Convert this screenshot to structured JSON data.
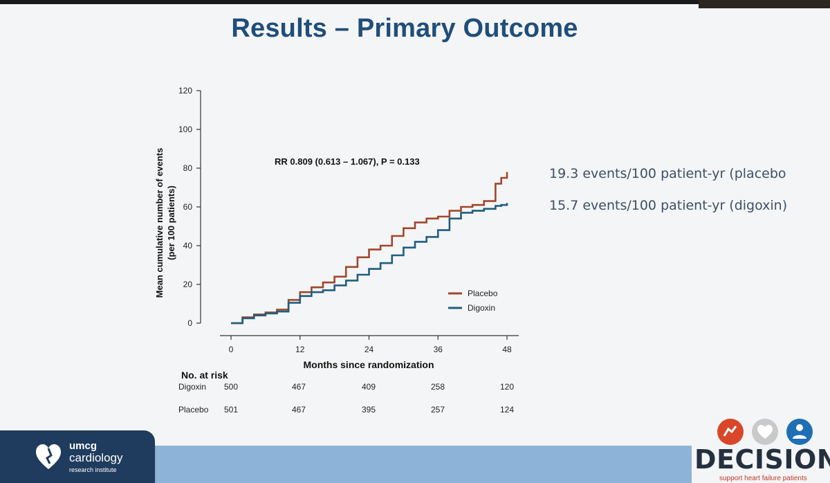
{
  "slide": {
    "title": "Results – Primary Outcome",
    "annotations": [
      "19.3 events/100 patient-yr (placebo",
      "15.7 events/100 patient-yr (digoxin)"
    ]
  },
  "chart_data": {
    "type": "line",
    "title": "",
    "xlabel": "Months since randomization",
    "ylabel": "Mean cumulative number of events (per 100 patients)",
    "ylabel_lines": [
      "Mean cumulative number of events",
      "(per 100 patients)"
    ],
    "xlim": [
      0,
      48
    ],
    "ylim": [
      0,
      120
    ],
    "xticks": [
      0,
      12,
      24,
      36,
      48
    ],
    "yticks": [
      0,
      20,
      40,
      60,
      80,
      100,
      120
    ],
    "grid": false,
    "legend_position": "bottom-right",
    "annotation": "RR 0.809 (0.613 – 1.067), P = 0.133",
    "series": [
      {
        "name": "Placebo",
        "color": "#a0472a",
        "x": [
          0,
          2,
          4,
          6,
          8,
          10,
          12,
          14,
          16,
          18,
          20,
          22,
          24,
          26,
          28,
          30,
          32,
          34,
          36,
          38,
          40,
          42,
          44,
          46,
          47,
          48
        ],
        "y": [
          0,
          3,
          4.5,
          5.5,
          7,
          12,
          16,
          18.5,
          21,
          24,
          29,
          34,
          38,
          40,
          45,
          49,
          52,
          54,
          55,
          58,
          60,
          61,
          63,
          72,
          75,
          78
        ]
      },
      {
        "name": "Digoxin",
        "color": "#1f5d7e",
        "x": [
          0,
          2,
          4,
          6,
          8,
          10,
          12,
          14,
          16,
          18,
          20,
          22,
          24,
          26,
          28,
          30,
          32,
          34,
          36,
          38,
          40,
          42,
          44,
          46,
          47,
          48
        ],
        "y": [
          0,
          2.5,
          4,
          5,
          6,
          10.5,
          14,
          16,
          17,
          19.5,
          22,
          25,
          28,
          31,
          35,
          39,
          42,
          44.5,
          48,
          54,
          57,
          58,
          59,
          60.5,
          61,
          62
        ]
      }
    ],
    "risk_table": {
      "title": "No. at risk",
      "rows": [
        {
          "label": "Digoxin",
          "values": [
            500,
            467,
            409,
            258,
            120
          ]
        },
        {
          "label": "Placebo",
          "values": [
            501,
            467,
            395,
            257,
            124
          ]
        }
      ]
    }
  },
  "footer": {
    "umcg": {
      "line1": "umcg",
      "line2": "cardiology",
      "line3": "research institute"
    },
    "decision": {
      "word": "DECISION",
      "tagline": "support heart failure patients"
    }
  }
}
